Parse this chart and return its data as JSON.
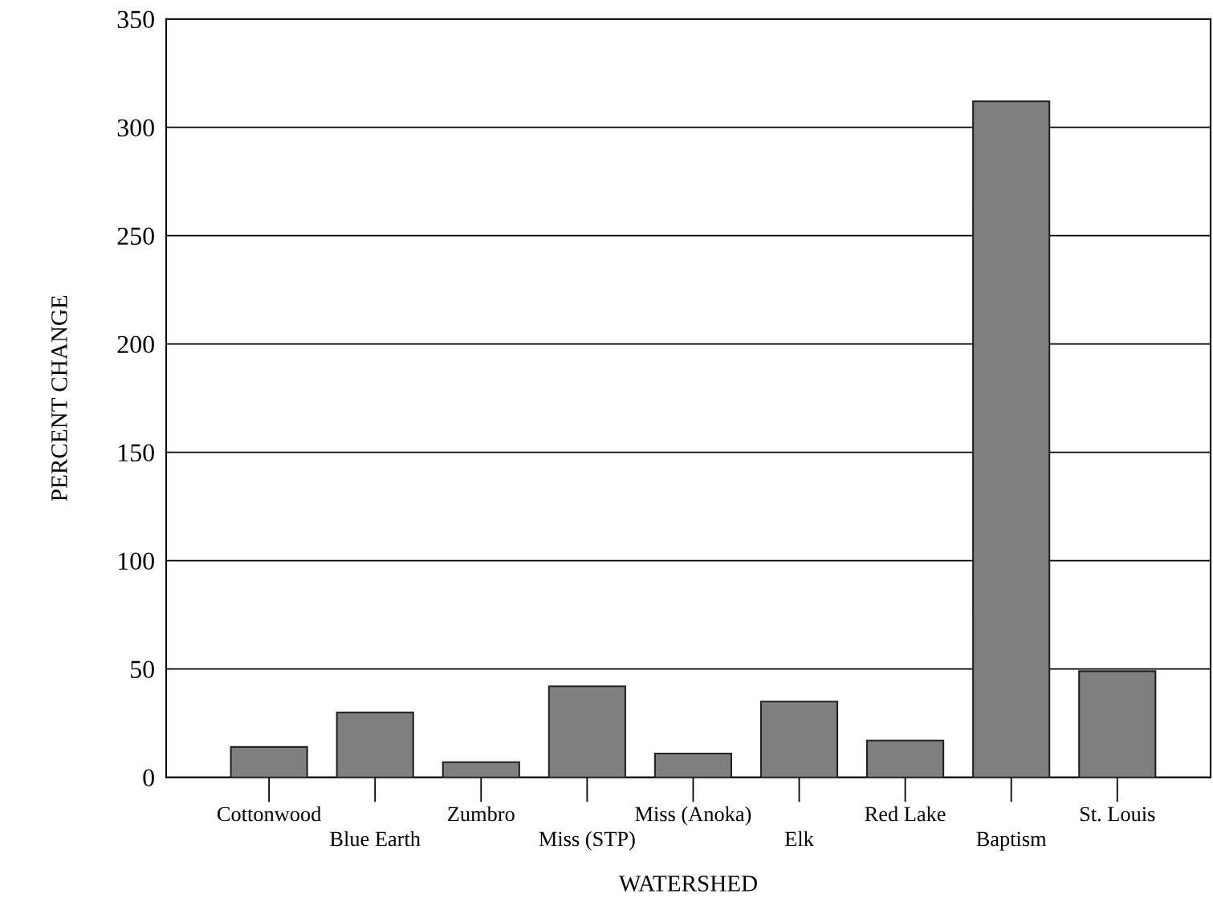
{
  "chart_data": {
    "type": "bar",
    "xlabel": "WATERSHED",
    "ylabel": "PERCENT CHANGE",
    "categories": [
      "Cottonwood",
      "Blue Earth",
      "Zumbro",
      "Miss (STP)",
      "Miss (Anoka)",
      "Elk",
      "Red Lake",
      "Baptism",
      "St. Louis"
    ],
    "values": [
      14,
      30,
      7,
      42,
      11,
      35,
      17,
      312,
      49
    ],
    "color": "#7f7f7f",
    "ylim": [
      0,
      350
    ],
    "yticks": [
      0,
      50,
      100,
      150,
      200,
      250,
      300,
      350
    ],
    "grid": "y"
  }
}
